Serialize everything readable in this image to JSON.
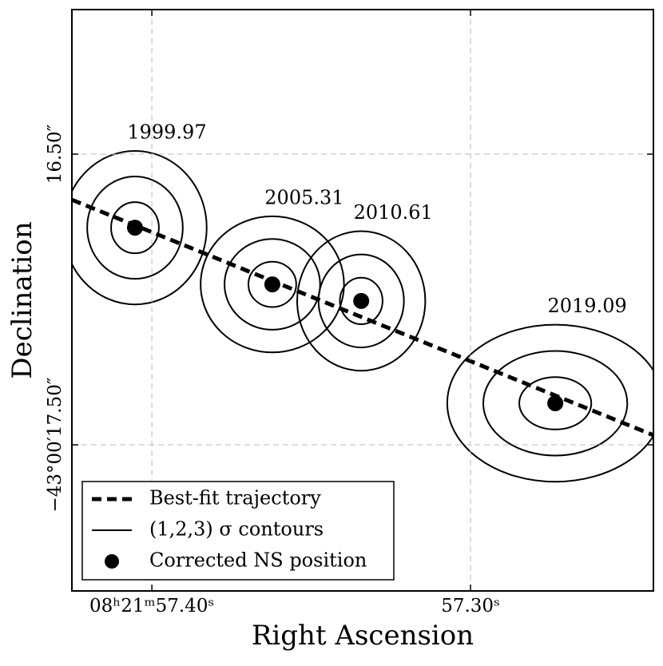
{
  "chart_data": {
    "type": "scatter",
    "xlabel": "Right Ascension",
    "ylabel": "Declination",
    "xlim": [
      57.4251,
      57.2426
    ],
    "ylim": [
      18.0027,
      16.0027
    ],
    "xticks": [
      {
        "value": 57.4,
        "label": "08ʰ21ᵐ57.40ˢ"
      },
      {
        "value": 57.3,
        "label": "57.30ˢ"
      }
    ],
    "yticks": [
      {
        "value": 16.5,
        "label": "16.50″"
      },
      {
        "value": 17.5,
        "label": "−43°00′17.50″"
      }
    ],
    "grid": true,
    "trajectory": {
      "name": "Best-fit trajectory",
      "x": [
        57.4251,
        57.2426
      ],
      "y": [
        16.657,
        17.467
      ]
    },
    "contours_name": "(1,2,3) σ contours",
    "points": {
      "name": "Corrected NS position",
      "color": "#000000",
      "labels": [
        "1999.97",
        "2005.31",
        "2010.61",
        "2019.09"
      ],
      "x": [
        57.4053,
        57.3622,
        57.3343,
        57.2734
      ],
      "y": [
        16.753,
        16.948,
        17.005,
        17.357
      ],
      "sigma_x": [
        0.0075,
        0.0075,
        0.0067,
        0.0113
      ],
      "sigma_y": [
        0.088,
        0.078,
        0.08,
        0.09
      ]
    },
    "legend": "lower left"
  }
}
